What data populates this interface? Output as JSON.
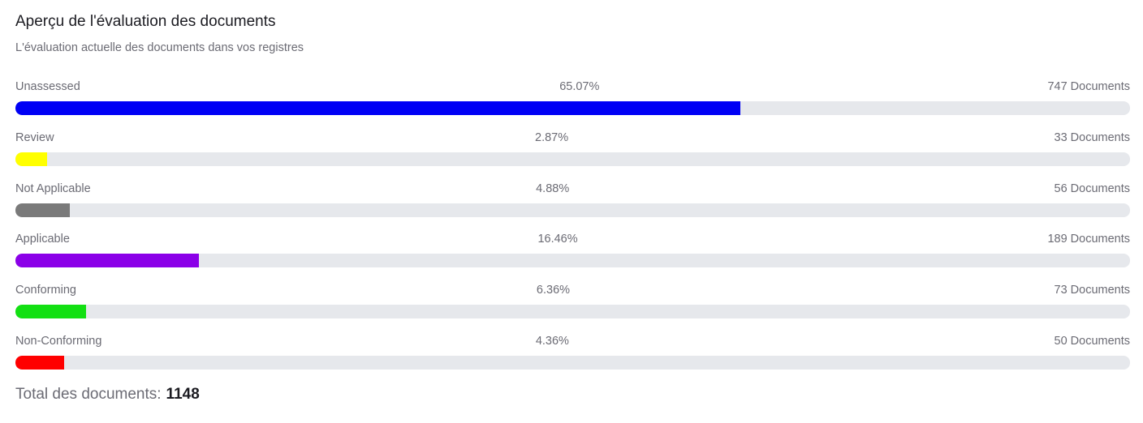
{
  "header": {
    "title": "Aperçu de l'évaluation des documents",
    "subtitle": "L'évaluation actuelle des documents dans vos registres"
  },
  "footer": {
    "total_label": "Total des documents:",
    "total_value": "1148"
  },
  "chart_data": {
    "type": "bar",
    "orientation": "horizontal",
    "title": "Aperçu de l'évaluation des documents",
    "subtitle": "L'évaluation actuelle des documents dans vos registres",
    "xlim": [
      0,
      100
    ],
    "grid": false,
    "categories": [
      "Unassessed",
      "Review",
      "Not Applicable",
      "Applicable",
      "Conforming",
      "Non-Conforming"
    ],
    "values": [
      65.07,
      2.87,
      4.88,
      16.46,
      6.36,
      4.36
    ],
    "items": [
      {
        "label": "Unassessed",
        "percent": 65.07,
        "percent_text": "65.07%",
        "count": 747,
        "count_text": "747 Documents",
        "color": "#0000f5"
      },
      {
        "label": "Review",
        "percent": 2.87,
        "percent_text": "2.87%",
        "count": 33,
        "count_text": "33 Documents",
        "color": "#ffff00"
      },
      {
        "label": "Not Applicable",
        "percent": 4.88,
        "percent_text": "4.88%",
        "count": 56,
        "count_text": "56 Documents",
        "color": "#7a7a7a"
      },
      {
        "label": "Applicable",
        "percent": 16.46,
        "percent_text": "16.46%",
        "count": 189,
        "count_text": "189 Documents",
        "color": "#8b00e8"
      },
      {
        "label": "Conforming",
        "percent": 6.36,
        "percent_text": "6.36%",
        "count": 73,
        "count_text": "73 Documents",
        "color": "#13e013"
      },
      {
        "label": "Non-Conforming",
        "percent": 4.36,
        "percent_text": "4.36%",
        "count": 50,
        "count_text": "50 Documents",
        "color": "#ff0000"
      }
    ]
  }
}
